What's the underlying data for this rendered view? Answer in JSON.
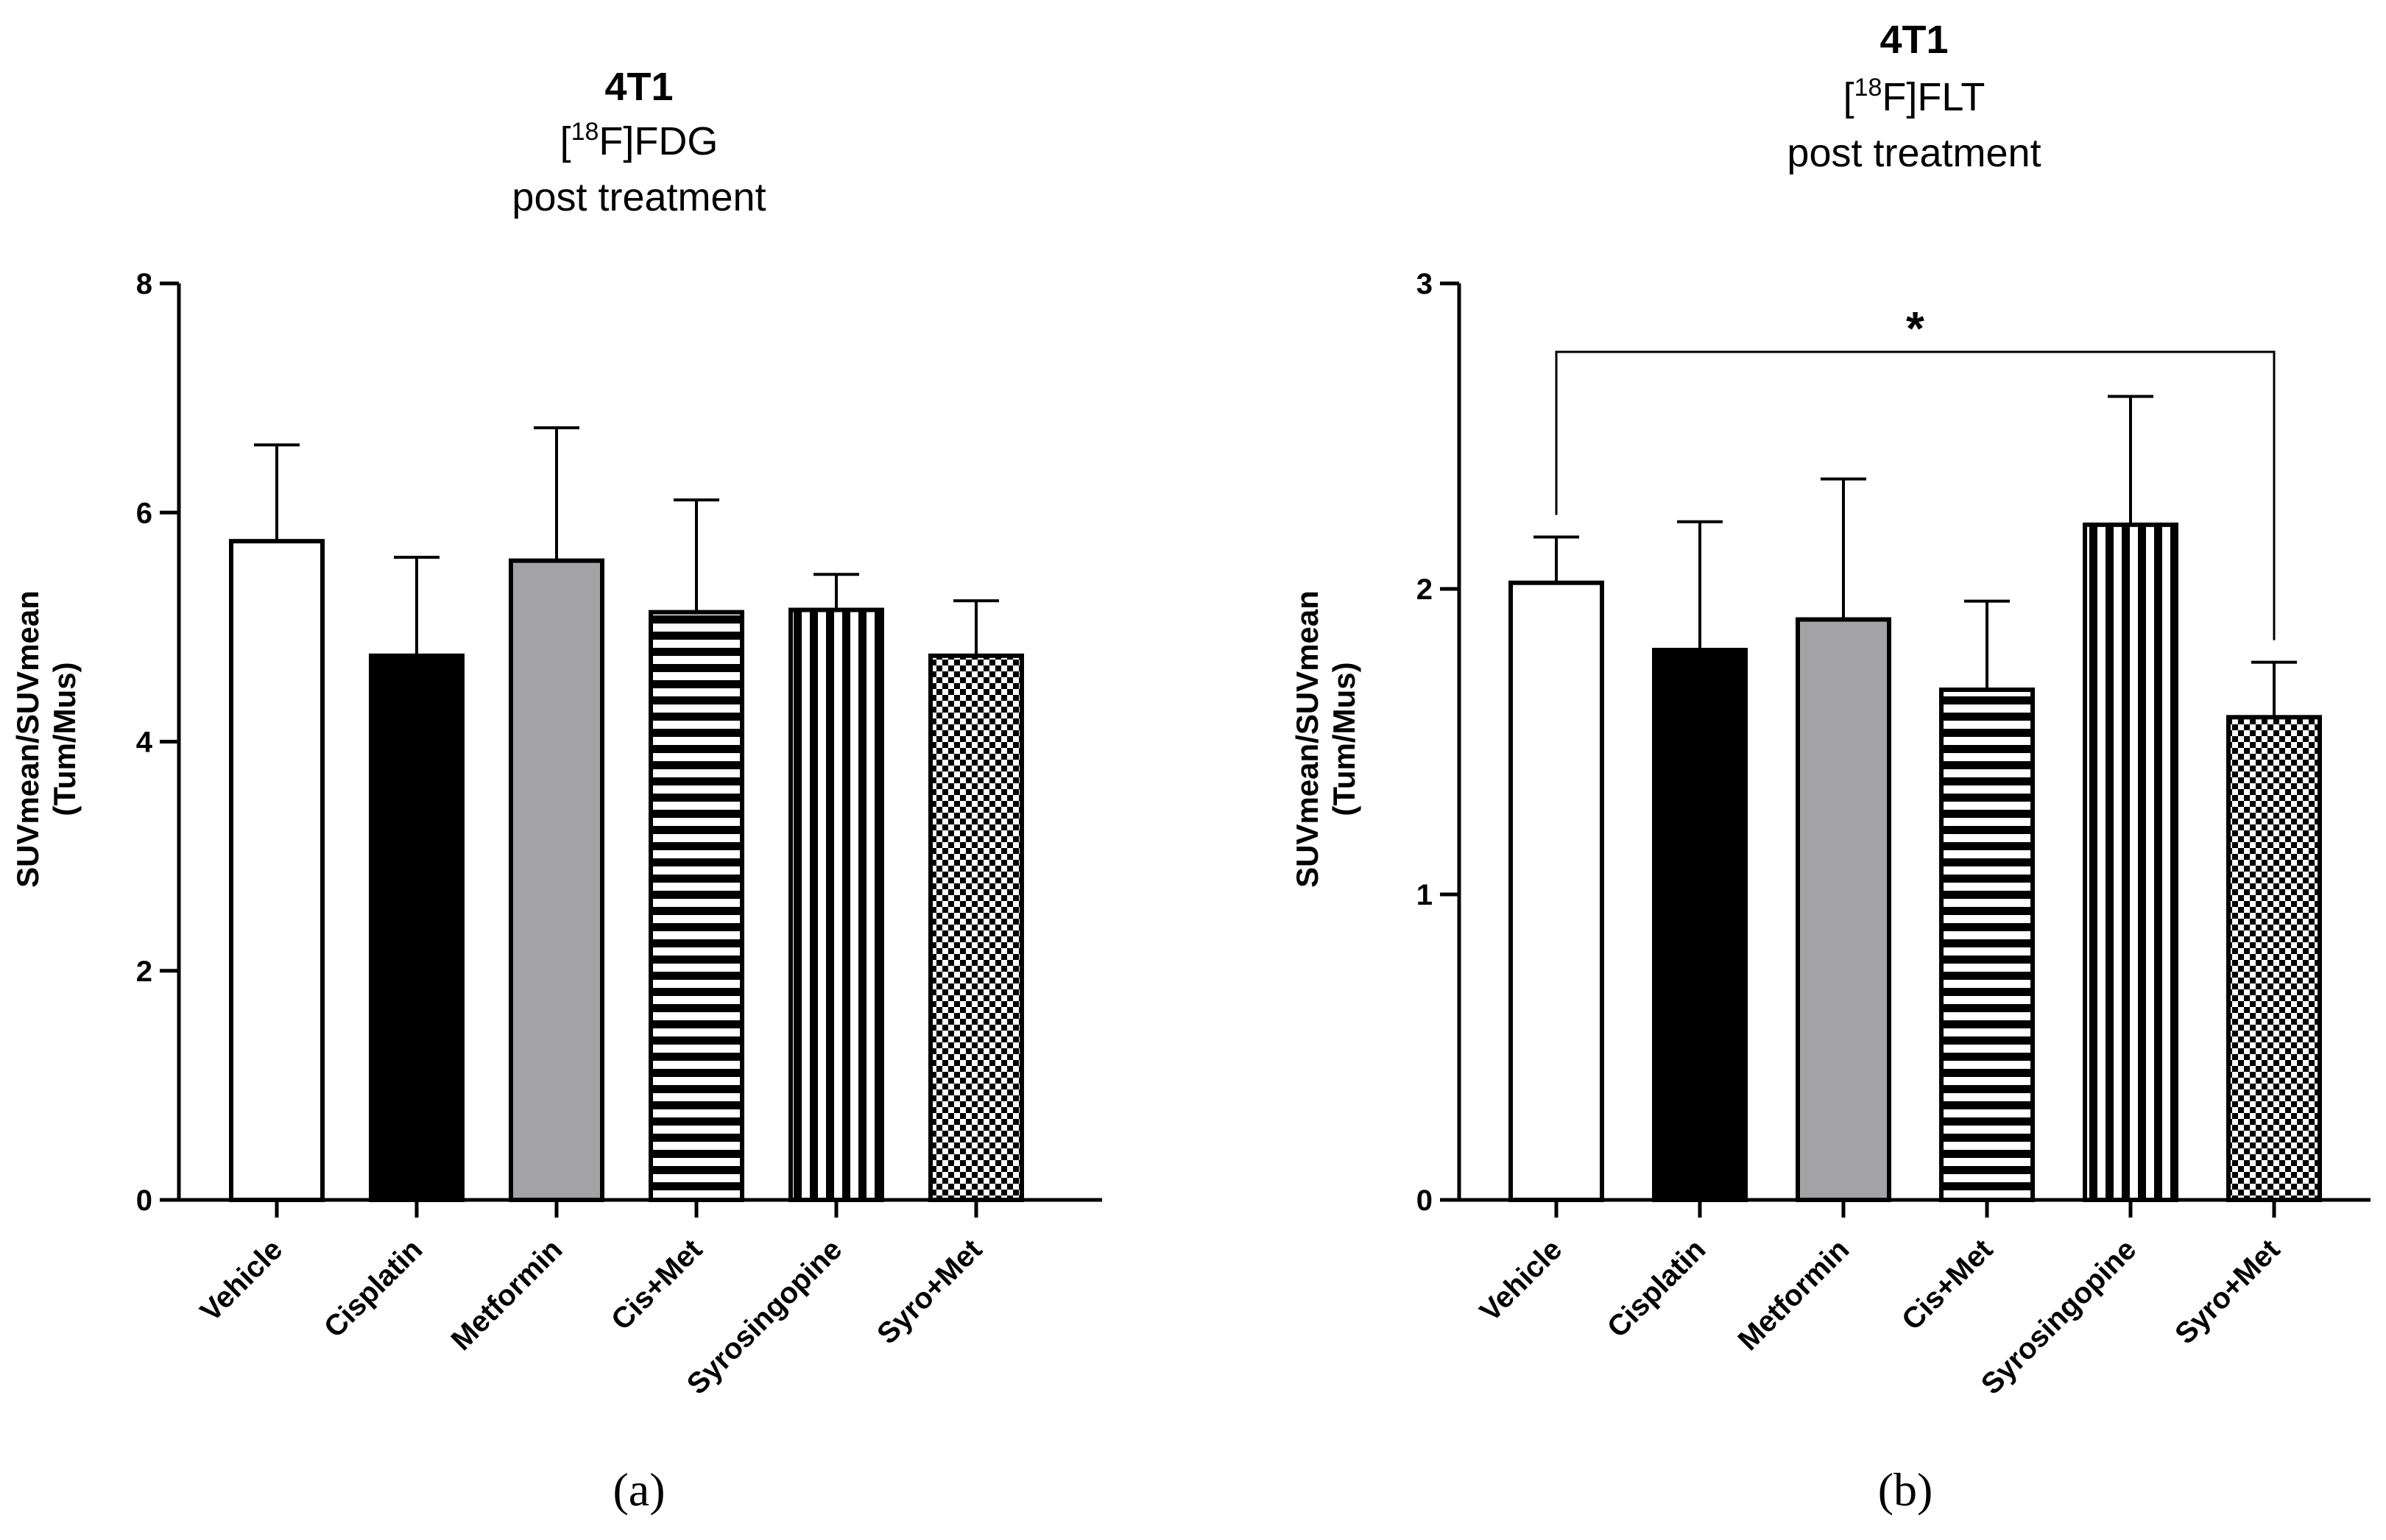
{
  "chart_data": [
    {
      "type": "bar",
      "panel": "a",
      "panel_label": "(a)",
      "title": "4T1",
      "title_prefix": "[",
      "title_superscript": "18",
      "title_tracer": "F]FDG",
      "subtitle": "post treatment",
      "ylabel_line1": "SUVmean/SUVmean",
      "ylabel_line2": "(Tum/Mus)",
      "xlabel": "",
      "ylim": [
        0,
        8
      ],
      "yticks": [
        0,
        2,
        4,
        6,
        8
      ],
      "categories": [
        "Vehicle",
        "Cisplatin",
        "Metformin",
        "Cis+Met",
        "Syrosingopine",
        "Syro+Met"
      ],
      "values": [
        5.75,
        4.75,
        5.58,
        5.13,
        5.15,
        4.75
      ],
      "errors": [
        0.84,
        0.86,
        1.16,
        0.98,
        0.31,
        0.48
      ],
      "fills": [
        "white",
        "black",
        "gray",
        "hstripes",
        "vstripes",
        "checker"
      ],
      "significance": null
    },
    {
      "type": "bar",
      "panel": "b",
      "panel_label": "(b)",
      "title": "4T1",
      "title_prefix": "[",
      "title_superscript": "18",
      "title_tracer": "F]FLT",
      "subtitle": "post treatment",
      "ylabel_line1": "SUVmean/SUVmean",
      "ylabel_line2": "(Tum/Mus)",
      "xlabel": "",
      "ylim": [
        0,
        3
      ],
      "yticks": [
        0,
        1,
        2,
        3
      ],
      "categories": [
        "Vehicle",
        "Cisplatin",
        "Metformin",
        "Cis+Met",
        "Syrosingopine",
        "Syro+Met"
      ],
      "values": [
        2.02,
        1.8,
        1.9,
        1.67,
        2.21,
        1.58
      ],
      "errors": [
        0.15,
        0.42,
        0.46,
        0.29,
        0.42,
        0.18
      ],
      "fills": [
        "white",
        "black",
        "gray",
        "hstripes",
        "vstripes",
        "checker"
      ],
      "significance": {
        "from": 0,
        "to": 5,
        "label": "*"
      }
    }
  ],
  "colors": {
    "bar_gray": "#a3a3a6",
    "ink": "#000000",
    "background": "#ffffff"
  }
}
